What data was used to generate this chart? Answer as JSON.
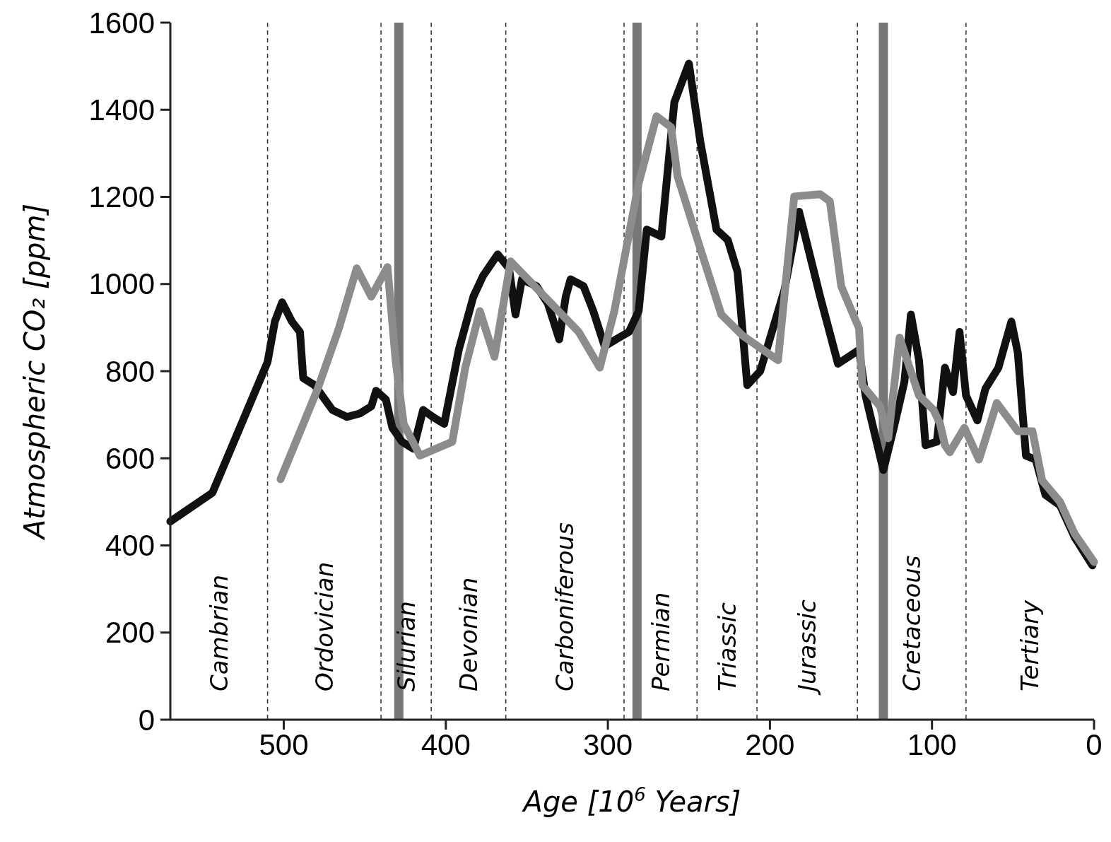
{
  "chart_data": {
    "type": "line",
    "xlabel": "Age [10$^{6}$ Years]",
    "ylabel": "Atmospheric CO₂ [ppm]",
    "x": [
      570,
      544,
      510,
      505.5,
      501,
      495,
      490,
      488,
      481,
      470,
      461,
      453,
      446,
      443,
      437,
      433,
      427,
      420,
      414,
      408,
      401,
      392,
      383,
      377,
      368,
      361,
      357,
      353,
      344,
      337,
      330,
      326,
      323,
      315,
      309,
      302,
      295,
      287,
      281,
      276,
      267,
      259,
      250,
      243,
      233,
      226,
      220,
      214,
      206,
      191,
      182,
      169,
      158,
      145,
      141,
      130,
      123,
      117,
      113,
      108,
      104,
      97,
      92,
      87,
      83,
      79,
      72,
      67,
      59,
      51,
      47,
      42,
      36,
      30,
      21,
      12,
      1
    ],
    "series": [
      {
        "color": "#111111",
        "values": [
          455,
          521,
          821,
          914,
          958,
          914,
          890,
          784,
          768,
          711,
          695,
          703,
          719,
          755,
          735,
          670,
          638,
          622,
          711,
          695,
          679,
          849,
          971,
          1019,
          1068,
          1036,
          930,
          1011,
          995,
          955,
          873,
          971,
          1011,
          995,
          938,
          857,
          873,
          890,
          938,
          1125,
          1109,
          1417,
          1506,
          1328,
          1125,
          1101,
          1028,
          768,
          800,
          987,
          1166,
          971,
          817,
          849,
          744,
          573,
          679,
          776,
          930,
          825,
          630,
          638,
          808,
          752,
          890,
          744,
          687,
          760,
          808,
          914,
          841,
          606,
          597,
          516,
          492,
          419,
          354
        ]
      },
      {
        "color": "#8c8c8c",
        "x": [
          502,
          479,
          466,
          455,
          446,
          436,
          431,
          426,
          416,
          396,
          388,
          379,
          370,
          360,
          339,
          318,
          305,
          296,
          281,
          270,
          261,
          257,
          246,
          230,
          217,
          195,
          185,
          169,
          163,
          156,
          145,
          143,
          132,
          127,
          120,
          108,
          99,
          95,
          92,
          89,
          80,
          71,
          60,
          47,
          38,
          32,
          21,
          12,
          0
        ],
        "values": [
          552,
          760,
          898,
          1036,
          971,
          1039,
          825,
          679,
          606,
          638,
          808,
          938,
          833,
          1052,
          971,
          890,
          808,
          938,
          1231,
          1385,
          1360,
          1247,
          1117,
          930,
          882,
          825,
          1201,
          1206,
          1190,
          995,
          898,
          768,
          719,
          646,
          877,
          744,
          711,
          679,
          630,
          614,
          670,
          597,
          727,
          662,
          662,
          549,
          500,
          427,
          362
        ]
      }
    ],
    "xlim": [
      570,
      0
    ],
    "xticks": [
      500,
      400,
      300,
      200,
      100,
      0
    ],
    "ylim": [
      0,
      1600
    ],
    "yticks": [
      0,
      200,
      400,
      600,
      800,
      1000,
      1200,
      1400,
      1600
    ],
    "grid": false,
    "marker": "none",
    "line_style": "solid",
    "ref_lines": [
      {
        "axis": "x",
        "value": 510,
        "color": "#333333",
        "line_style": "dashed"
      },
      {
        "axis": "x",
        "value": 440,
        "color": "#333333",
        "line_style": "dashed"
      },
      {
        "axis": "x",
        "value": 409,
        "color": "#333333",
        "line_style": "dashed"
      },
      {
        "axis": "x",
        "value": 363,
        "color": "#333333",
        "line_style": "dashed"
      },
      {
        "axis": "x",
        "value": 290,
        "color": "#333333",
        "line_style": "dashed"
      },
      {
        "axis": "x",
        "value": 245,
        "color": "#333333",
        "line_style": "dashed"
      },
      {
        "axis": "x",
        "value": 208,
        "color": "#333333",
        "line_style": "dashed"
      },
      {
        "axis": "x",
        "value": 146,
        "color": "#333333",
        "line_style": "dashed"
      },
      {
        "axis": "x",
        "value": 79,
        "color": "#333333",
        "line_style": "dashed"
      },
      {
        "axis": "x",
        "value": 429,
        "color": "#777777",
        "line_style": "solid"
      },
      {
        "axis": "x",
        "value": 282,
        "color": "#777777",
        "line_style": "solid"
      },
      {
        "axis": "x",
        "value": 130,
        "color": "#777777",
        "line_style": "solid"
      }
    ],
    "annotations": [
      "Cambrian",
      "Ordovician",
      "Silurian",
      "Devonian",
      "Carboniferous",
      "Permian",
      "Triassic",
      "Jurassic",
      "Cretaceous",
      "Tertiary"
    ]
  }
}
